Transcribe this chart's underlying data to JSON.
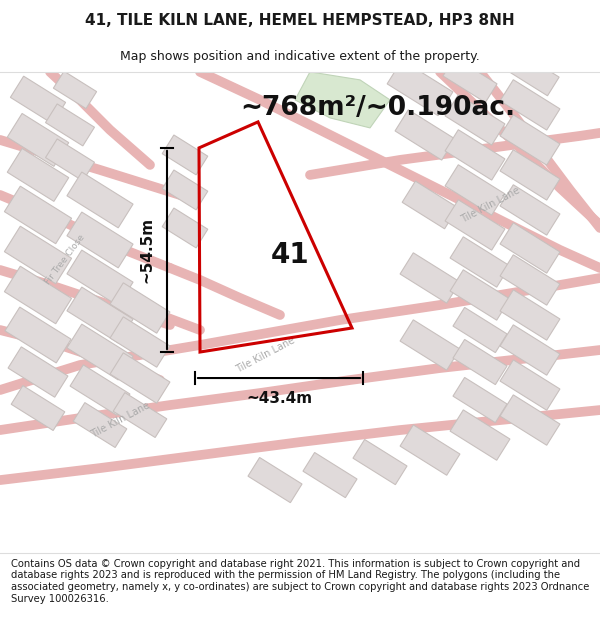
{
  "title_line1": "41, TILE KILN LANE, HEMEL HEMPSTEAD, HP3 8NH",
  "title_line2": "Map shows position and indicative extent of the property.",
  "area_text": "~768m²/~0.190ac.",
  "label_41": "41",
  "dim_height": "~54.5m",
  "dim_width": "~43.4m",
  "footer_text": "Contains OS data © Crown copyright and database right 2021. This information is subject to Crown copyright and database rights 2023 and is reproduced with the permission of HM Land Registry. The polygons (including the associated geometry, namely x, y co-ordinates) are subject to Crown copyright and database rights 2023 Ordnance Survey 100026316.",
  "map_bg": "#f8f4f2",
  "road_color": "#e8b4b4",
  "road_outline_color": "#d89898",
  "building_fill": "#e0dada",
  "building_edge": "#c8c0be",
  "green_fill": "#d8e8d0",
  "green_edge": "#c0d4b8",
  "plot_color": "#cc0000",
  "title_fontsize": 11,
  "subtitle_fontsize": 9,
  "area_fontsize": 19,
  "label_fontsize": 20,
  "dim_fontsize": 11,
  "footer_fontsize": 7.2,
  "road_label_color": "#aaaaaa",
  "road_label_size": 7
}
